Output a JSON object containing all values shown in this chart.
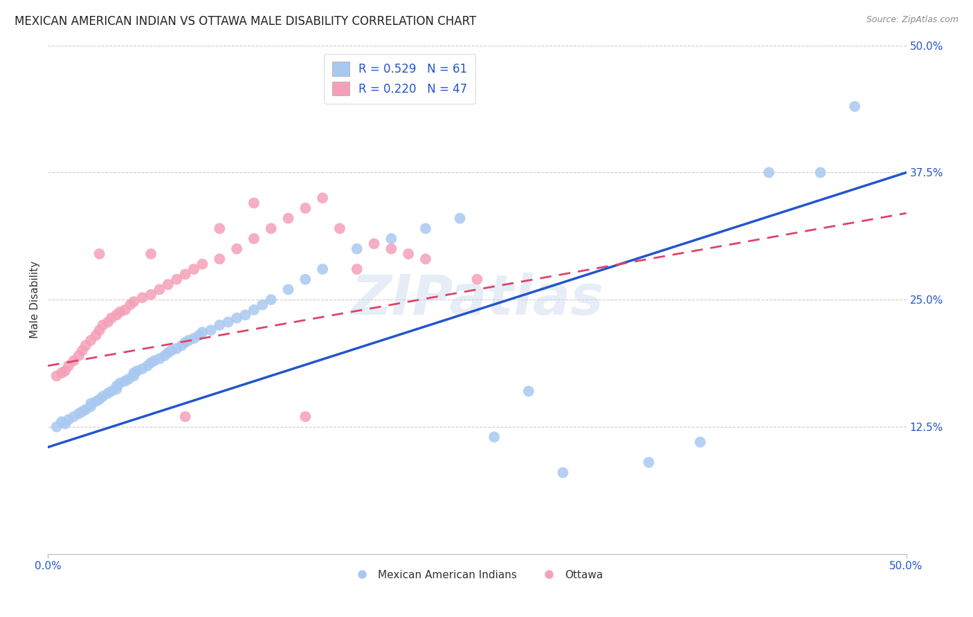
{
  "title": "MEXICAN AMERICAN INDIAN VS OTTAWA MALE DISABILITY CORRELATION CHART",
  "source": "Source: ZipAtlas.com",
  "ylabel": "Male Disability",
  "xlim": [
    0.0,
    0.5
  ],
  "ylim": [
    0.0,
    0.5
  ],
  "xtick_vals": [
    0.0,
    0.125,
    0.25,
    0.375,
    0.5
  ],
  "xtick_labels": [
    "0.0%",
    "",
    "",
    "",
    "50.0%"
  ],
  "ytick_vals_right": [
    0.125,
    0.25,
    0.375,
    0.5
  ],
  "ytick_labels_right": [
    "12.5%",
    "25.0%",
    "37.5%",
    "50.0%"
  ],
  "blue_color": "#A8C8F0",
  "pink_color": "#F4A0B8",
  "blue_line_color": "#2255CC",
  "pink_line_color": "#DD4466",
  "legend_blue_label": "R = 0.529   N = 61",
  "legend_pink_label": "R = 0.220   N = 47",
  "legend_bottom_blue": "Mexican American Indians",
  "legend_bottom_pink": "Ottawa",
  "watermark": "ZIPatlas",
  "title_fontsize": 12,
  "axis_label_fontsize": 11,
  "tick_fontsize": 11,
  "blue_scatter_x": [
    0.005,
    0.008,
    0.01,
    0.012,
    0.015,
    0.018,
    0.02,
    0.022,
    0.025,
    0.025,
    0.028,
    0.03,
    0.032,
    0.035,
    0.037,
    0.04,
    0.04,
    0.042,
    0.045,
    0.047,
    0.05,
    0.05,
    0.052,
    0.055,
    0.058,
    0.06,
    0.062,
    0.065,
    0.068,
    0.07,
    0.072,
    0.075,
    0.078,
    0.08,
    0.082,
    0.085,
    0.088,
    0.09,
    0.095,
    0.1,
    0.105,
    0.11,
    0.115,
    0.12,
    0.125,
    0.13,
    0.14,
    0.15,
    0.16,
    0.18,
    0.2,
    0.22,
    0.24,
    0.26,
    0.28,
    0.3,
    0.35,
    0.38,
    0.42,
    0.45,
    0.47
  ],
  "blue_scatter_y": [
    0.125,
    0.13,
    0.128,
    0.132,
    0.135,
    0.138,
    0.14,
    0.142,
    0.145,
    0.148,
    0.15,
    0.152,
    0.155,
    0.158,
    0.16,
    0.162,
    0.165,
    0.168,
    0.17,
    0.172,
    0.175,
    0.178,
    0.18,
    0.182,
    0.185,
    0.188,
    0.19,
    0.192,
    0.195,
    0.198,
    0.2,
    0.202,
    0.205,
    0.208,
    0.21,
    0.212,
    0.215,
    0.218,
    0.22,
    0.225,
    0.228,
    0.232,
    0.235,
    0.24,
    0.245,
    0.25,
    0.26,
    0.27,
    0.28,
    0.3,
    0.31,
    0.32,
    0.33,
    0.115,
    0.16,
    0.08,
    0.09,
    0.11,
    0.375,
    0.375,
    0.44
  ],
  "pink_scatter_x": [
    0.005,
    0.008,
    0.01,
    0.012,
    0.015,
    0.018,
    0.02,
    0.022,
    0.025,
    0.028,
    0.03,
    0.032,
    0.035,
    0.037,
    0.04,
    0.042,
    0.045,
    0.048,
    0.05,
    0.055,
    0.06,
    0.065,
    0.07,
    0.075,
    0.08,
    0.085,
    0.09,
    0.1,
    0.11,
    0.12,
    0.13,
    0.14,
    0.15,
    0.16,
    0.17,
    0.18,
    0.19,
    0.2,
    0.21,
    0.22,
    0.1,
    0.12,
    0.08,
    0.15,
    0.25,
    0.03,
    0.06
  ],
  "pink_scatter_y": [
    0.175,
    0.178,
    0.18,
    0.185,
    0.19,
    0.195,
    0.2,
    0.205,
    0.21,
    0.215,
    0.22,
    0.225,
    0.228,
    0.232,
    0.235,
    0.238,
    0.24,
    0.245,
    0.248,
    0.252,
    0.255,
    0.26,
    0.265,
    0.27,
    0.275,
    0.28,
    0.285,
    0.29,
    0.3,
    0.31,
    0.32,
    0.33,
    0.34,
    0.35,
    0.32,
    0.28,
    0.305,
    0.3,
    0.295,
    0.29,
    0.32,
    0.345,
    0.135,
    0.135,
    0.27,
    0.295,
    0.295
  ],
  "blue_trend_x": [
    0.0,
    0.5
  ],
  "blue_trend_y": [
    0.105,
    0.375
  ],
  "pink_trend_x": [
    0.0,
    0.5
  ],
  "pink_trend_y": [
    0.185,
    0.335
  ]
}
